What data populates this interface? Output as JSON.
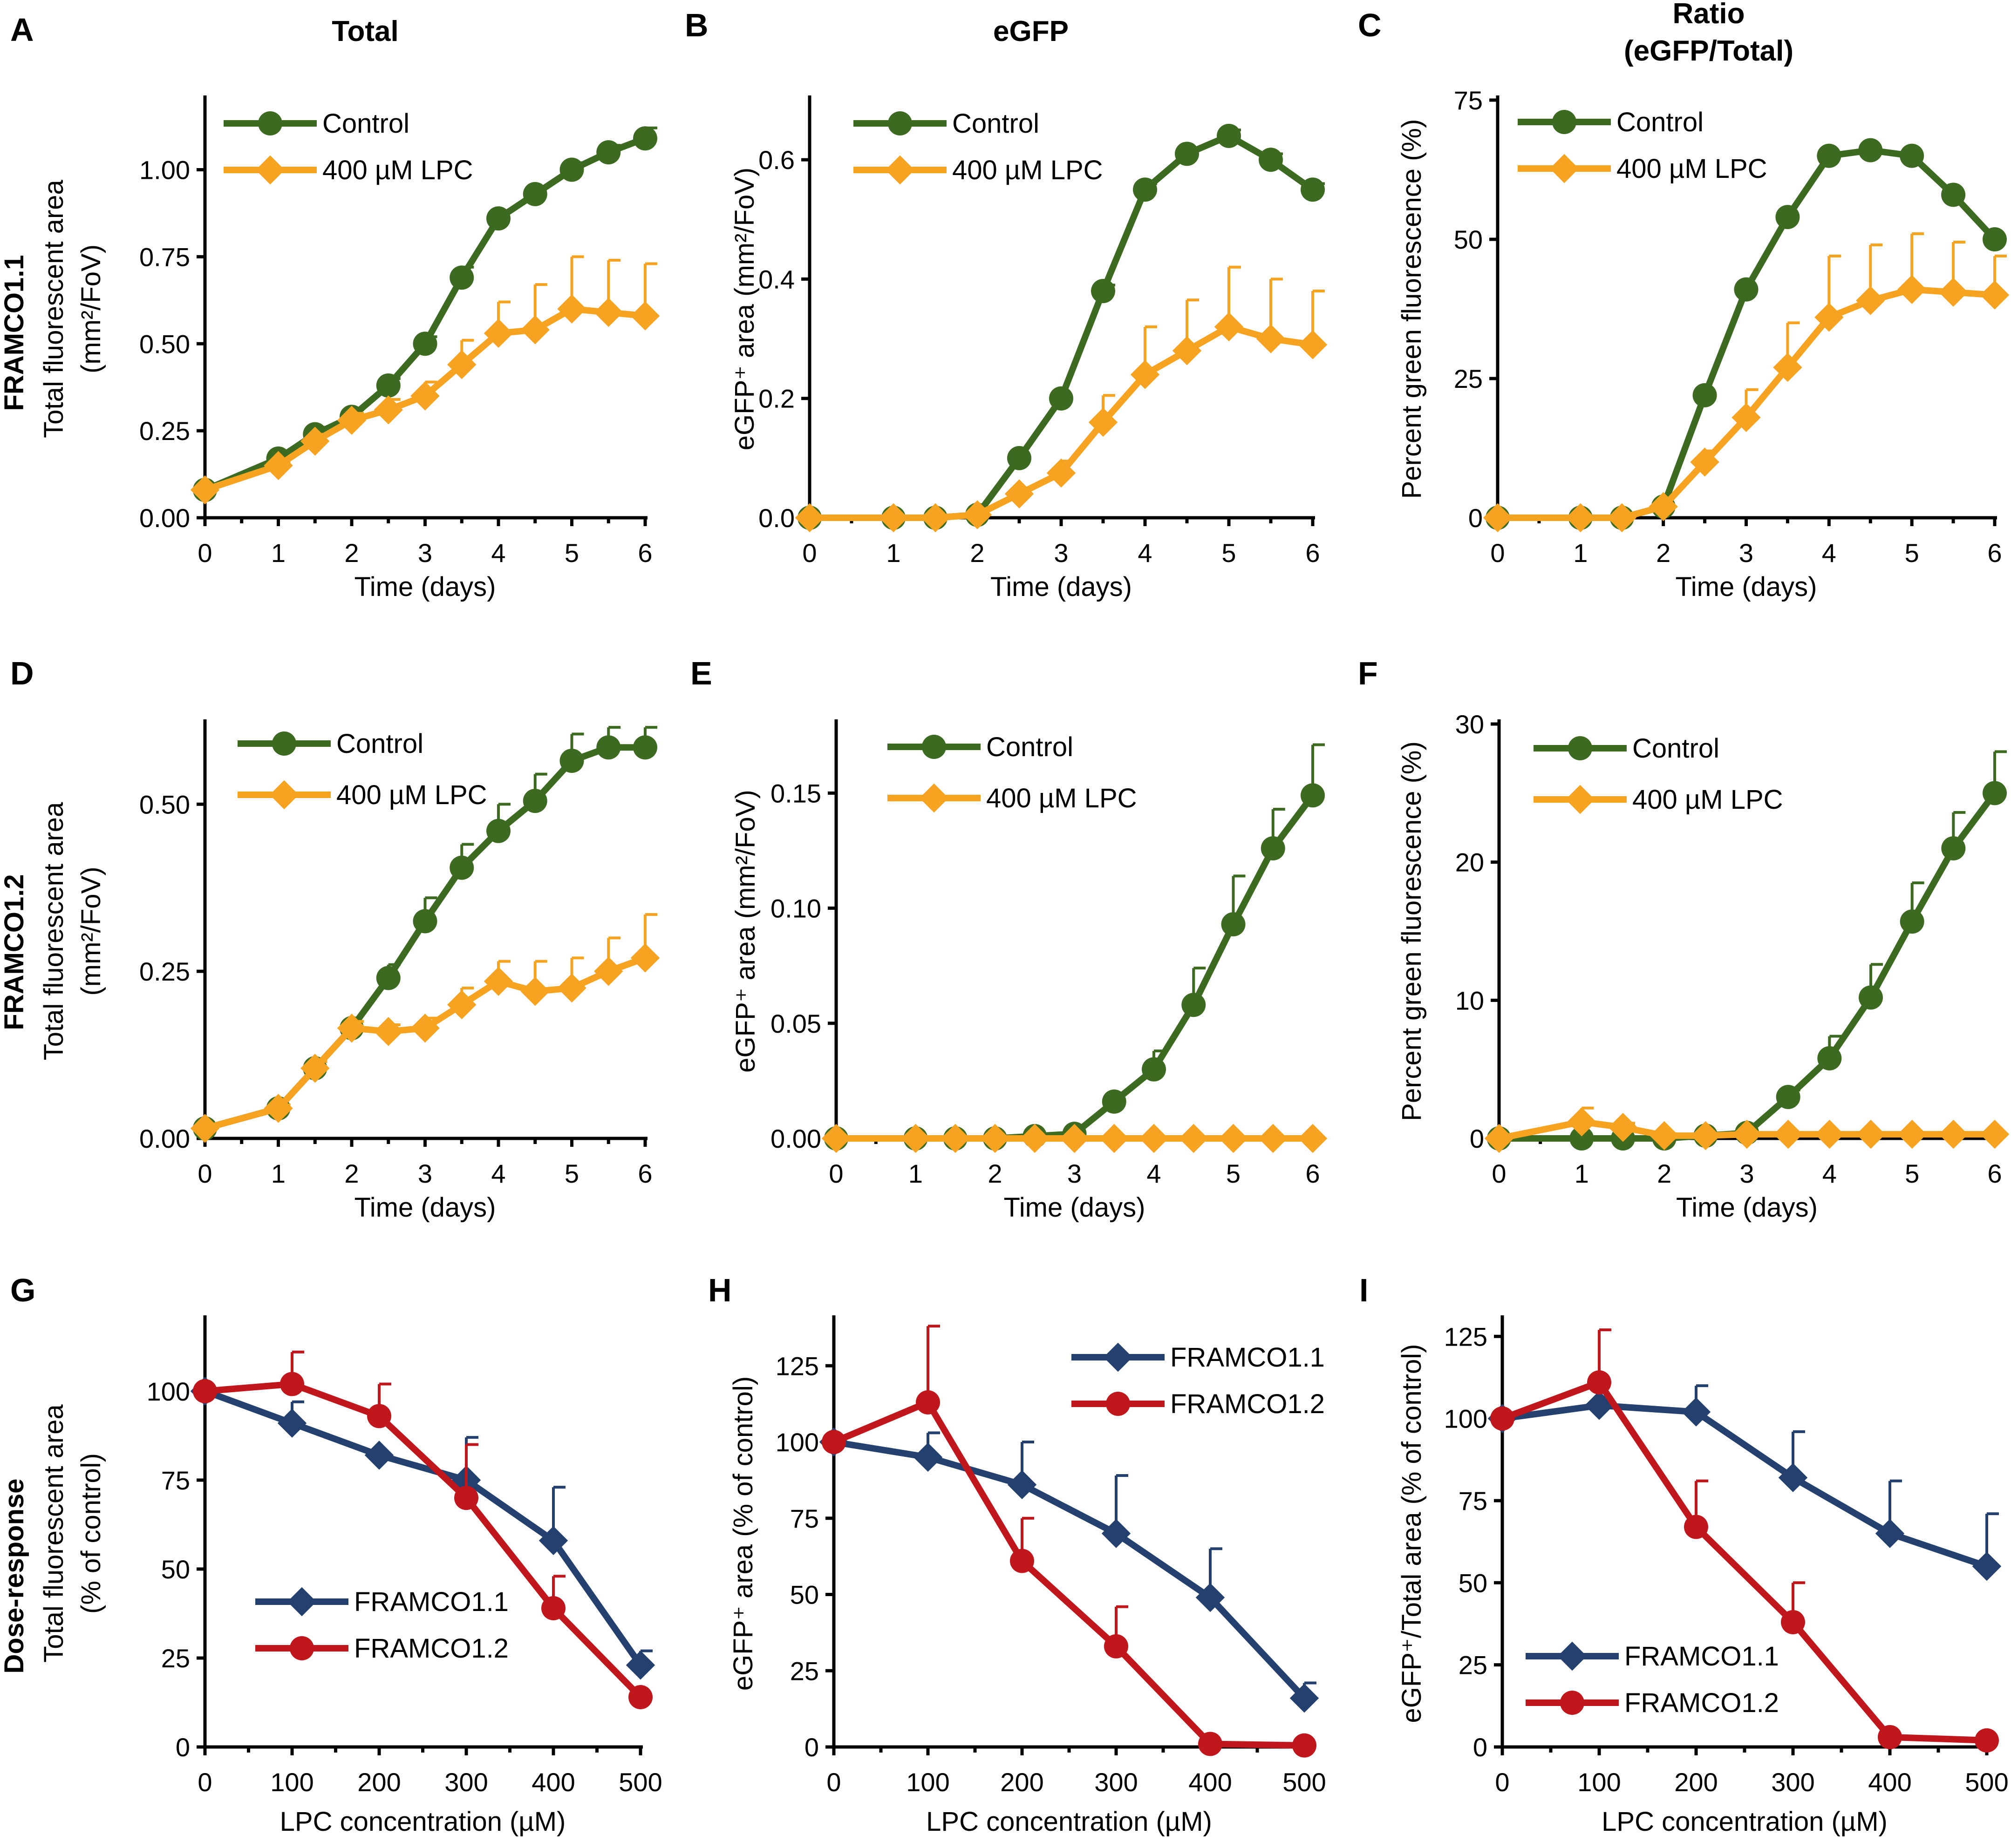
{
  "figure": {
    "column_titles": [
      "Total",
      "eGFP",
      "Ratio",
      "(eGFP/Total)"
    ],
    "row_labels": [
      "FRAMCO1.1",
      "FRAMCO1.2",
      "Dose-response"
    ],
    "colors": {
      "control": "#3d6a21",
      "lpc": "#f5a320",
      "framco11": "#24406e",
      "framco12": "#c0171d"
    }
  },
  "chart_data": [
    {
      "id": "A",
      "letter": "A",
      "type": "line",
      "title": "Total",
      "xlabel": "Time (days)",
      "ylabel_lines": [
        "Total fluorescent area",
        "(mm²/FoV)"
      ],
      "xlim": [
        0,
        6
      ],
      "ylim": [
        0,
        1.2
      ],
      "xticks": [
        0,
        1,
        2,
        3,
        4,
        5,
        6
      ],
      "yticks": [
        0,
        0.25,
        0.5,
        0.75,
        1.0
      ],
      "ytick_labels": [
        "0.00",
        "0.25",
        "0.50",
        "0.75",
        "1.00"
      ],
      "x": [
        0,
        1,
        1.5,
        2,
        2.5,
        3,
        3.5,
        4,
        4.5,
        5,
        5.5,
        6
      ],
      "series": [
        {
          "name": "Control",
          "color": "#3d6a21",
          "marker": "circle",
          "values": [
            0.08,
            0.17,
            0.24,
            0.29,
            0.38,
            0.5,
            0.69,
            0.86,
            0.93,
            1.0,
            1.05,
            1.09
          ],
          "errors": [
            0.01,
            0.01,
            0.02,
            0.02,
            0.02,
            0.02,
            0.03,
            0.02,
            0.02,
            0.02,
            0.02,
            0.03
          ]
        },
        {
          "name": "400 µM LPC",
          "color": "#f5a320",
          "marker": "diamond",
          "values": [
            0.08,
            0.15,
            0.22,
            0.28,
            0.31,
            0.35,
            0.44,
            0.53,
            0.54,
            0.6,
            0.59,
            0.58
          ],
          "errors": [
            0.01,
            0.01,
            0.02,
            0.02,
            0.03,
            0.04,
            0.07,
            0.09,
            0.13,
            0.15,
            0.15,
            0.15
          ]
        }
      ]
    },
    {
      "id": "B",
      "letter": "B",
      "type": "line",
      "title": "eGFP",
      "xlabel": "Time (days)",
      "ylabel_lines": [
        "eGFP⁺ area (mm²/FoV)"
      ],
      "xlim": [
        0,
        6
      ],
      "ylim": [
        0,
        0.7
      ],
      "xticks": [
        0,
        1,
        2,
        3,
        4,
        5,
        6
      ],
      "yticks": [
        0,
        0.2,
        0.4,
        0.6
      ],
      "ytick_labels": [
        "0.0",
        "0.2",
        "0.4",
        "0.6"
      ],
      "x": [
        0,
        1,
        1.5,
        2,
        2.5,
        3,
        3.5,
        4,
        4.5,
        5,
        5.5,
        6
      ],
      "series": [
        {
          "name": "Control",
          "color": "#3d6a21",
          "marker": "circle",
          "values": [
            0,
            0,
            0,
            0.005,
            0.1,
            0.2,
            0.38,
            0.55,
            0.61,
            0.64,
            0.6,
            0.55
          ],
          "errors": [
            0,
            0,
            0,
            0,
            0,
            0,
            0.01,
            0.01,
            0.01,
            0.01,
            0.01,
            0.01
          ]
        },
        {
          "name": "400 µM LPC",
          "color": "#f5a320",
          "marker": "diamond",
          "values": [
            0,
            0,
            0,
            0.005,
            0.04,
            0.075,
            0.16,
            0.24,
            0.28,
            0.32,
            0.3,
            0.29
          ],
          "errors": [
            0,
            0,
            0,
            0,
            0.01,
            0.02,
            0.045,
            0.08,
            0.085,
            0.1,
            0.1,
            0.09
          ]
        }
      ]
    },
    {
      "id": "C",
      "letter": "C",
      "type": "line",
      "title": "Ratio",
      "xlabel": "Time (days)",
      "ylabel_lines": [
        "Percent green fluorescence (%)"
      ],
      "xlim": [
        0,
        6
      ],
      "ylim": [
        0,
        75
      ],
      "xticks": [
        0,
        1,
        2,
        3,
        4,
        5,
        6
      ],
      "yticks": [
        0,
        25,
        50,
        75
      ],
      "ytick_labels": [
        "0",
        "25",
        "50",
        "75"
      ],
      "x": [
        0,
        1,
        1.5,
        2,
        2.5,
        3,
        3.5,
        4,
        4.5,
        5,
        5.5,
        6
      ],
      "series": [
        {
          "name": "Control",
          "color": "#3d6a21",
          "marker": "circle",
          "values": [
            0,
            0,
            0,
            2,
            22,
            41,
            54,
            65,
            66,
            65,
            58,
            50
          ],
          "errors": [
            0,
            0,
            0,
            0,
            0,
            0,
            0,
            0,
            0,
            0,
            0,
            0
          ]
        },
        {
          "name": "400 µM LPC",
          "color": "#f5a320",
          "marker": "diamond",
          "values": [
            0,
            0,
            0,
            2,
            10,
            18,
            27,
            36,
            39,
            41,
            40.5,
            40
          ],
          "errors": [
            0,
            0,
            0,
            0,
            2,
            5,
            8,
            11,
            10,
            10,
            9,
            7
          ]
        }
      ]
    },
    {
      "id": "D",
      "letter": "D",
      "type": "line",
      "xlabel": "Time (days)",
      "ylabel_lines": [
        "Total fluorescent area",
        "(mm²/FoV)"
      ],
      "xlim": [
        0,
        6
      ],
      "ylim": [
        0,
        0.62
      ],
      "xticks": [
        0,
        1,
        2,
        3,
        4,
        5,
        6
      ],
      "yticks": [
        0,
        0.25,
        0.5
      ],
      "ytick_labels": [
        "0.00",
        "0.25",
        "0.50"
      ],
      "x": [
        0,
        1,
        1.5,
        2,
        2.5,
        3,
        3.5,
        4,
        4.5,
        5,
        5.5,
        6
      ],
      "series": [
        {
          "name": "Control",
          "color": "#3d6a21",
          "marker": "circle",
          "values": [
            0.015,
            0.045,
            0.105,
            0.165,
            0.24,
            0.325,
            0.405,
            0.46,
            0.505,
            0.565,
            0.585,
            0.585
          ],
          "errors": [
            0.005,
            0.005,
            0.01,
            0.01,
            0.02,
            0.035,
            0.035,
            0.04,
            0.04,
            0.04,
            0.03,
            0.03
          ]
        },
        {
          "name": "400 µM LPC",
          "color": "#f5a320",
          "marker": "diamond",
          "values": [
            0.015,
            0.045,
            0.105,
            0.165,
            0.16,
            0.165,
            0.2,
            0.235,
            0.22,
            0.225,
            0.25,
            0.27
          ],
          "errors": [
            0.005,
            0.005,
            0.01,
            0.01,
            0.01,
            0.015,
            0.025,
            0.03,
            0.045,
            0.045,
            0.05,
            0.065
          ]
        }
      ]
    },
    {
      "id": "E",
      "letter": "E",
      "type": "line",
      "xlabel": "Time (days)",
      "ylabel_lines": [
        "eGFP⁺ area (mm²/FoV)"
      ],
      "xlim": [
        0,
        6
      ],
      "ylim": [
        0,
        0.18
      ],
      "xticks": [
        0,
        1,
        2,
        3,
        4,
        5,
        6
      ],
      "yticks": [
        0,
        0.05,
        0.1,
        0.15
      ],
      "ytick_labels": [
        "0.00",
        "0.05",
        "0.10",
        "0.15"
      ],
      "x": [
        0,
        1,
        1.5,
        2,
        2.5,
        3,
        3.5,
        4,
        4.5,
        5,
        5.5,
        6
      ],
      "series": [
        {
          "name": "Control",
          "color": "#3d6a21",
          "marker": "circle",
          "values": [
            0,
            0,
            0,
            0,
            0.001,
            0.002,
            0.016,
            0.03,
            0.058,
            0.093,
            0.126,
            0.149
          ],
          "errors": [
            0,
            0,
            0,
            0,
            0,
            0,
            0.003,
            0.008,
            0.016,
            0.021,
            0.017,
            0.022
          ]
        },
        {
          "name": "400 µM LPC",
          "color": "#f5a320",
          "marker": "diamond",
          "values": [
            0,
            0,
            0,
            0,
            0,
            0,
            0,
            0,
            0,
            0,
            0,
            0
          ],
          "errors": [
            0,
            0,
            0,
            0,
            0,
            0,
            0,
            0,
            0,
            0,
            0,
            0
          ]
        }
      ]
    },
    {
      "id": "F",
      "letter": "F",
      "type": "line",
      "xlabel": "Time (days)",
      "ylabel_lines": [
        "Percent green fluorescence (%)"
      ],
      "xlim": [
        0,
        6
      ],
      "ylim": [
        0,
        30
      ],
      "xticks": [
        0,
        1,
        2,
        3,
        4,
        5,
        6
      ],
      "yticks": [
        0,
        10,
        20,
        30
      ],
      "ytick_labels": [
        "0",
        "10",
        "20",
        "30"
      ],
      "x": [
        0,
        1,
        1.5,
        2,
        2.5,
        3,
        3.5,
        4,
        4.5,
        5,
        5.5,
        6
      ],
      "series": [
        {
          "name": "Control",
          "color": "#3d6a21",
          "marker": "circle",
          "values": [
            0,
            0,
            0,
            0,
            0.2,
            0.4,
            3,
            5.8,
            10.2,
            15.7,
            21,
            25
          ],
          "errors": [
            0,
            0,
            0,
            0,
            0,
            0,
            0.5,
            1.6,
            2.4,
            2.8,
            2.6,
            3
          ]
        },
        {
          "name": "400 µM LPC",
          "color": "#f5a320",
          "marker": "diamond",
          "values": [
            0,
            1.2,
            0.8,
            0.2,
            0.2,
            0.3,
            0.3,
            0.3,
            0.3,
            0.3,
            0.3,
            0.3
          ],
          "errors": [
            0,
            1,
            0.3,
            0,
            0,
            0,
            0,
            0,
            0,
            0,
            0,
            0
          ]
        }
      ]
    },
    {
      "id": "G",
      "letter": "G",
      "type": "line",
      "xlabel": "LPC concentration (µM)",
      "ylabel_lines": [
        "Total fluorescent area",
        "(% of control)"
      ],
      "xlim": [
        0,
        500
      ],
      "ylim": [
        0,
        120
      ],
      "xticks": [
        0,
        100,
        200,
        300,
        400,
        500
      ],
      "yticks": [
        0,
        25,
        50,
        75,
        100
      ],
      "ytick_labels": [
        "0",
        "25",
        "50",
        "75",
        "100"
      ],
      "x": [
        0,
        100,
        200,
        300,
        400,
        500
      ],
      "series": [
        {
          "name": "FRAMCO1.1",
          "color": "#24406e",
          "marker": "diamond",
          "values": [
            100,
            91,
            82,
            75,
            58,
            23
          ],
          "errors": [
            0,
            6,
            0,
            12,
            15,
            4
          ]
        },
        {
          "name": "FRAMCO1.2",
          "color": "#c0171d",
          "marker": "circle",
          "values": [
            100,
            102,
            93,
            70,
            39,
            14
          ],
          "errors": [
            0,
            9,
            9,
            15,
            9,
            0
          ]
        }
      ]
    },
    {
      "id": "H",
      "letter": "H",
      "type": "line",
      "xlabel": "LPC concentration (µM)",
      "ylabel_lines": [
        "eGFP⁺ area (% of control)"
      ],
      "xlim": [
        0,
        500
      ],
      "ylim": [
        0,
        140
      ],
      "xticks": [
        0,
        100,
        200,
        300,
        400,
        500
      ],
      "yticks": [
        0,
        25,
        50,
        75,
        100,
        125
      ],
      "ytick_labels": [
        "0",
        "25",
        "50",
        "75",
        "100",
        "125"
      ],
      "x": [
        0,
        100,
        200,
        300,
        400,
        500
      ],
      "series": [
        {
          "name": "FRAMCO1.1",
          "color": "#24406e",
          "marker": "diamond",
          "values": [
            100,
            95,
            86,
            70,
            49,
            16
          ],
          "errors": [
            0,
            8,
            14,
            19,
            16,
            5
          ]
        },
        {
          "name": "FRAMCO1.2",
          "color": "#c0171d",
          "marker": "circle",
          "values": [
            100,
            113,
            61,
            33,
            1,
            0.5
          ],
          "errors": [
            0,
            25,
            14,
            13,
            0,
            0
          ]
        }
      ]
    },
    {
      "id": "I",
      "letter": "I",
      "type": "line",
      "xlabel": "LPC concentration (µM)",
      "ylabel_lines": [
        "eGFP⁺/Total area (% of control)"
      ],
      "xlim": [
        0,
        500
      ],
      "ylim": [
        0,
        130
      ],
      "xticks": [
        0,
        100,
        200,
        300,
        400,
        500
      ],
      "yticks": [
        0,
        25,
        50,
        75,
        100,
        125
      ],
      "ytick_labels": [
        "0",
        "25",
        "50",
        "75",
        "100",
        "125"
      ],
      "x": [
        0,
        100,
        200,
        300,
        400,
        500
      ],
      "series": [
        {
          "name": "FRAMCO1.1",
          "color": "#24406e",
          "marker": "diamond",
          "values": [
            100,
            104,
            102,
            82,
            65,
            55
          ],
          "errors": [
            0,
            0,
            8,
            14,
            16,
            16
          ]
        },
        {
          "name": "FRAMCO1.2",
          "color": "#c0171d",
          "marker": "circle",
          "values": [
            100,
            111,
            67,
            38,
            3,
            2
          ],
          "errors": [
            0,
            16,
            14,
            12,
            0,
            0
          ]
        }
      ]
    }
  ]
}
